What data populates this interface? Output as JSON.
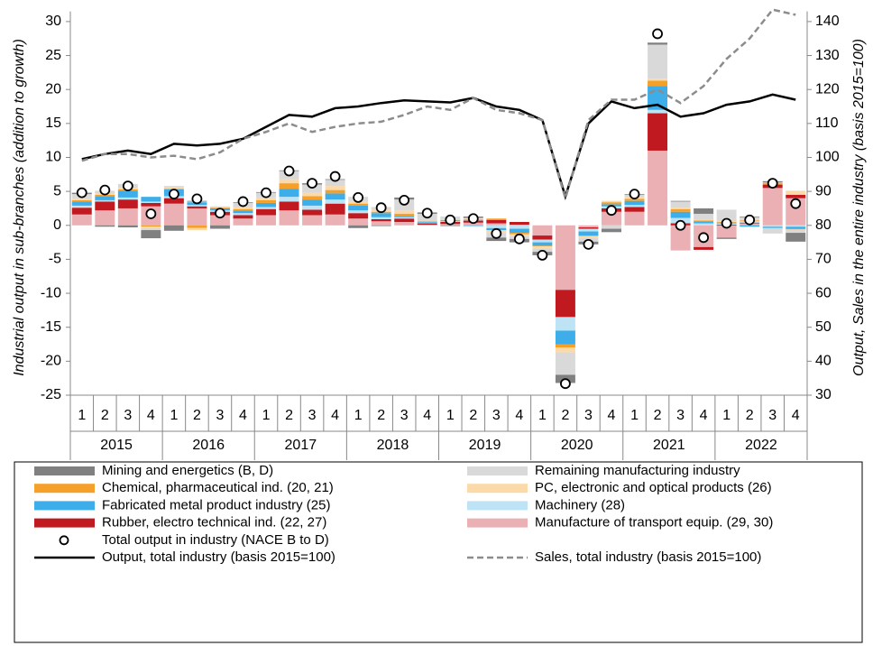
{
  "chart_data": {
    "type": "bar",
    "stacked": true,
    "y_label": "Industrial output in sub-branches (addition to growth)",
    "y2_label": "Output, Sales in the entire industry (basis 2015=100)",
    "categories": [
      "1",
      "2",
      "3",
      "4",
      "1",
      "2",
      "3",
      "4",
      "1",
      "2",
      "3",
      "4",
      "1",
      "2",
      "3",
      "4",
      "1",
      "2",
      "3",
      "4",
      "1",
      "2",
      "3",
      "4",
      "1",
      "2",
      "3",
      "4",
      "1",
      "2",
      "3",
      "4"
    ],
    "years": [
      "2015",
      "2016",
      "2017",
      "2018",
      "2019",
      "2020",
      "2021",
      "2022"
    ],
    "ylim": [
      -25,
      31.5
    ],
    "yticks": [
      -25,
      -20,
      -15,
      -10,
      -5,
      0,
      5,
      10,
      15,
      20,
      25,
      30
    ],
    "y2lim": [
      30,
      143
    ],
    "y2ticks": [
      30,
      40,
      50,
      60,
      70,
      80,
      90,
      100,
      110,
      120,
      130,
      140
    ],
    "series": [
      {
        "name": "Mining and energetics (B, D)",
        "type": "bar",
        "color": "#808080",
        "values": [
          0.2,
          -0.2,
          -0.3,
          -1.2,
          -0.8,
          0.1,
          -0.5,
          0.1,
          0.1,
          0.1,
          0.2,
          0.1,
          -0.4,
          -0.1,
          0.3,
          0.2,
          -0.1,
          0.2,
          -0.5,
          -0.5,
          -0.5,
          -1.2,
          -0.4,
          -0.5,
          0.1,
          0.3,
          0.1,
          0.8,
          -0.2,
          0.1,
          0.2,
          -1.3
        ]
      },
      {
        "name": "Remaining manufacturing industry",
        "type": "bar",
        "color": "#d9d9d9",
        "values": [
          0.7,
          0.4,
          0.6,
          -0.3,
          0.2,
          0.1,
          0.1,
          0.6,
          0.7,
          1.2,
          1.2,
          0.9,
          0.7,
          0.4,
          1.6,
          1.0,
          0.4,
          0.1,
          -0.7,
          -0.4,
          -0.5,
          -3.3,
          -0.6,
          -0.5,
          0.3,
          5.0,
          0.9,
          0.8,
          1.6,
          0.3,
          -0.8,
          -0.5
        ]
      },
      {
        "name": "Chemical, pharmaceutical ind. (20, 21)",
        "type": "bar",
        "color": "#f4a029",
        "values": [
          0.2,
          0.2,
          0.2,
          -0.2,
          0.1,
          -0.4,
          0.1,
          0.2,
          0.4,
          0.8,
          0.5,
          0.5,
          0.3,
          0.2,
          0.3,
          0.1,
          0.1,
          0.1,
          0.2,
          -0.2,
          -0.1,
          -0.5,
          -0.1,
          0.3,
          0.3,
          0.8,
          0.4,
          0.1,
          0.1,
          0.1,
          0.2,
          -0.1
        ]
      },
      {
        "name": "PC, electronic and optical products (26)",
        "type": "bar",
        "color": "#fcd9a9",
        "values": [
          0.2,
          0.2,
          0.2,
          -0.2,
          0.2,
          -0.3,
          0.1,
          0.3,
          0.4,
          0.6,
          0.5,
          0.6,
          0.3,
          0.3,
          0.5,
          0.1,
          0.1,
          0.1,
          -0.4,
          -0.3,
          -0.3,
          -0.7,
          -0.2,
          0.2,
          0.3,
          0.3,
          0.2,
          0.2,
          0.2,
          0.2,
          0.1,
          0.6
        ]
      },
      {
        "name": "Fabricated metal product industry (25)",
        "type": "bar",
        "color": "#3daee9",
        "values": [
          0.6,
          0.6,
          1.0,
          0.7,
          1.0,
          0.4,
          0.3,
          0.4,
          0.6,
          1.2,
          0.9,
          0.9,
          0.7,
          0.6,
          0.2,
          0.1,
          0.1,
          -0.1,
          -0.3,
          -0.6,
          -0.5,
          -2.0,
          -0.6,
          0.3,
          0.6,
          3.5,
          0.9,
          0.3,
          0.1,
          -0.2,
          -0.2,
          -0.3
        ]
      },
      {
        "name": "Machinery (28)",
        "type": "bar",
        "color": "#bde3f5",
        "values": [
          0.3,
          0.2,
          0.3,
          0.2,
          0.3,
          0.2,
          0.2,
          0.3,
          0.3,
          0.7,
          0.6,
          0.6,
          0.4,
          0.3,
          0.2,
          0.1,
          0.1,
          0.1,
          -0.4,
          -0.5,
          -0.4,
          -2.0,
          -0.4,
          0.3,
          0.3,
          0.5,
          0.8,
          0.3,
          0.2,
          0.2,
          -0.2,
          -0.2
        ]
      },
      {
        "name": "Rubber, electro technical ind. (22, 27)",
        "type": "bar",
        "color": "#c0191f",
        "values": [
          1.0,
          1.3,
          1.3,
          0.5,
          0.8,
          0.3,
          0.5,
          0.5,
          0.9,
          1.3,
          0.8,
          1.6,
          0.8,
          0.3,
          0.5,
          0.2,
          0.3,
          0.3,
          0.5,
          0.4,
          -0.6,
          -4.0,
          -0.2,
          0.5,
          0.7,
          5.5,
          0.3,
          -0.4,
          0.1,
          0.1,
          0.5,
          0.5
        ]
      },
      {
        "name": "Manufacture of transport equip. (29, 30)",
        "type": "bar",
        "color": "#eab0b4",
        "values": [
          1.6,
          2.2,
          2.5,
          2.8,
          3.2,
          2.5,
          1.5,
          1.0,
          1.5,
          2.2,
          1.5,
          1.6,
          1.0,
          0.6,
          0.5,
          0.1,
          0.2,
          0.4,
          0.3,
          0.1,
          -1.5,
          -9.5,
          -0.3,
          2.0,
          2.0,
          11.0,
          -3.7,
          -3.2,
          -1.8,
          0.3,
          5.5,
          4.0
        ]
      },
      {
        "name": "Total output in industry (NACE B to D)",
        "type": "scatter",
        "color": "#000000",
        "values": [
          4.8,
          5.2,
          5.8,
          1.7,
          4.6,
          3.9,
          1.8,
          3.5,
          4.8,
          8.0,
          6.2,
          7.2,
          4.1,
          2.6,
          3.7,
          1.8,
          0.8,
          1.0,
          -1.2,
          -2.0,
          -4.4,
          -23.3,
          -2.8,
          2.2,
          4.6,
          28.2,
          0.0,
          -1.8,
          0.3,
          0.8,
          6.2,
          3.2
        ]
      },
      {
        "name": "Output, total industry (basis 2015=100)",
        "type": "line",
        "axis": "y2",
        "color": "#000000",
        "values": [
          99.5,
          101,
          102,
          101,
          104,
          103.5,
          104,
          105.5,
          109,
          112.5,
          112,
          114.5,
          115,
          116,
          116.8,
          116.5,
          116.2,
          117.5,
          115,
          114,
          111,
          88.5,
          110,
          116.5,
          114.5,
          115.5,
          112,
          113,
          115.5,
          116.5,
          118.5,
          117
        ]
      },
      {
        "name": "Sales, total industry (basis 2015=100)",
        "type": "line",
        "axis": "y2",
        "dashed": true,
        "color": "#8c8c8c",
        "values": [
          99,
          101,
          101,
          100,
          100.5,
          99.5,
          101.5,
          105.5,
          107.5,
          110,
          107.5,
          109,
          110,
          110.5,
          112.5,
          115,
          114,
          117.5,
          114,
          113,
          111,
          88,
          111,
          117,
          117,
          120,
          116,
          121,
          129,
          135,
          143.5,
          142
        ]
      }
    ]
  }
}
